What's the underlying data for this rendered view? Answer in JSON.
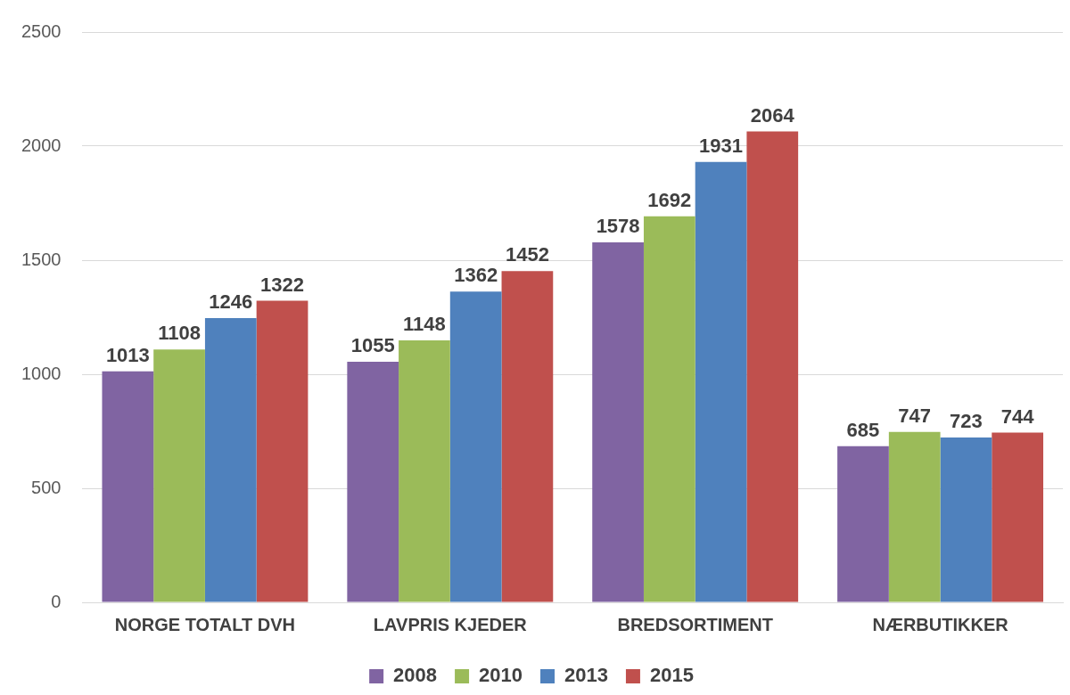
{
  "chart_data": {
    "type": "bar",
    "categories": [
      "NORGE TOTALT DVH",
      "LAVPRIS KJEDER",
      "BREDSORTIMENT",
      "NÆRBUTIKKER"
    ],
    "series": [
      {
        "name": "2008",
        "color": "#8064a2",
        "values": [
          1013,
          1055,
          1578,
          685
        ]
      },
      {
        "name": "2010",
        "color": "#9bbb59",
        "values": [
          1108,
          1148,
          1692,
          747
        ]
      },
      {
        "name": "2013",
        "color": "#4f81bd",
        "values": [
          1246,
          1362,
          1931,
          723
        ]
      },
      {
        "name": "2015",
        "color": "#c0504d",
        "values": [
          1322,
          1452,
          2064,
          744
        ]
      }
    ],
    "ylim": [
      0,
      2500
    ],
    "yticks": [
      0,
      500,
      1000,
      1500,
      2000,
      2500
    ],
    "grid": "y",
    "legend": "bottom",
    "data_labels": true
  }
}
